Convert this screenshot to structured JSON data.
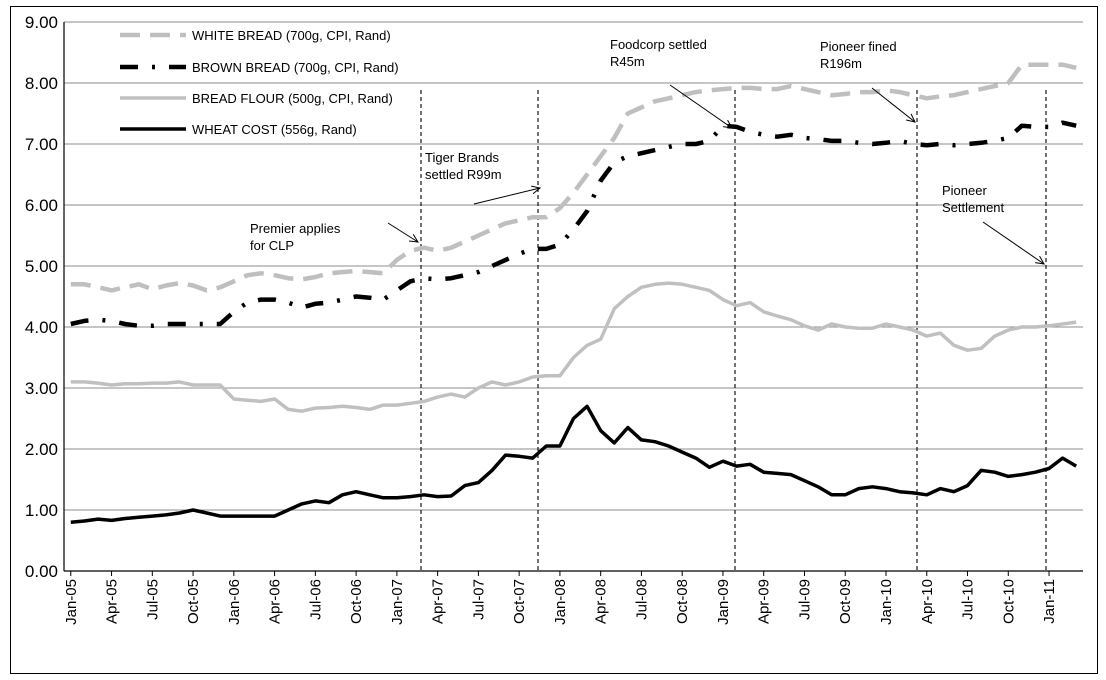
{
  "chart_data": {
    "type": "line",
    "title": "",
    "xlabel": "",
    "ylabel": "",
    "ylim": [
      0,
      9
    ],
    "yticks": [
      "0.00",
      "1.00",
      "2.00",
      "3.00",
      "4.00",
      "5.00",
      "6.00",
      "7.00",
      "8.00",
      "9.00"
    ],
    "x": [
      "2005-01",
      "2005-02",
      "2005-03",
      "2005-04",
      "2005-05",
      "2005-06",
      "2005-07",
      "2005-08",
      "2005-09",
      "2005-10",
      "2005-11",
      "2005-12",
      "2006-01",
      "2006-02",
      "2006-03",
      "2006-04",
      "2006-05",
      "2006-06",
      "2006-07",
      "2006-08",
      "2006-09",
      "2006-10",
      "2006-11",
      "2006-12",
      "2007-01",
      "2007-02",
      "2007-03",
      "2007-04",
      "2007-05",
      "2007-06",
      "2007-07",
      "2007-08",
      "2007-09",
      "2007-10",
      "2007-11",
      "2007-12",
      "2008-01",
      "2008-02",
      "2008-03",
      "2008-04",
      "2008-05",
      "2008-06",
      "2008-07",
      "2008-08",
      "2008-09",
      "2008-10",
      "2008-11",
      "2008-12",
      "2009-01",
      "2009-02",
      "2009-03",
      "2009-04",
      "2009-05",
      "2009-06",
      "2009-07",
      "2009-08",
      "2009-09",
      "2009-10",
      "2009-11",
      "2009-12",
      "2010-01",
      "2010-02",
      "2010-03",
      "2010-04",
      "2010-05",
      "2010-06",
      "2010-07",
      "2010-08",
      "2010-09",
      "2010-10",
      "2010-11",
      "2010-12",
      "2011-01",
      "2011-02",
      "2011-03"
    ],
    "xtick_labels": [
      "Jan-05",
      "Apr-05",
      "Jul-05",
      "Oct-05",
      "Jan-06",
      "Apr-06",
      "Jul-06",
      "Oct-06",
      "Jan-07",
      "Apr-07",
      "Jul-07",
      "Oct-07",
      "Jan-08",
      "Apr-08",
      "Jul-08",
      "Oct-08",
      "Jan-09",
      "Apr-09",
      "Jul-09",
      "Oct-09",
      "Jan-10",
      "Apr-10",
      "Jul-10",
      "Oct-10",
      "Jan-11"
    ],
    "grid": true,
    "legend_position": "top-left",
    "series": [
      {
        "name": "WHITE BREAD (700g, CPI, Rand)",
        "color": "#bfbfbf",
        "style": "dashed",
        "values": [
          4.7,
          4.7,
          4.65,
          4.6,
          4.65,
          4.7,
          4.62,
          4.68,
          4.72,
          4.68,
          4.6,
          4.65,
          4.75,
          4.85,
          4.88,
          4.85,
          4.8,
          4.78,
          4.82,
          4.88,
          4.9,
          4.92,
          4.9,
          4.88,
          5.1,
          5.25,
          5.3,
          5.25,
          5.3,
          5.4,
          5.5,
          5.6,
          5.7,
          5.75,
          5.8,
          5.8,
          5.95,
          6.2,
          6.5,
          6.8,
          7.1,
          7.5,
          7.6,
          7.7,
          7.75,
          7.8,
          7.85,
          7.88,
          7.9,
          7.92,
          7.92,
          7.9,
          7.9,
          7.95,
          7.9,
          7.85,
          7.8,
          7.82,
          7.85,
          7.85,
          7.88,
          7.85,
          7.8,
          7.75,
          7.78,
          7.8,
          7.85,
          7.9,
          7.95,
          8.0,
          8.3,
          8.3,
          8.3,
          8.3,
          8.25
        ]
      },
      {
        "name": "BROWN BREAD (700g, CPI, Rand)",
        "color": "#000000",
        "style": "dash-dot",
        "values": [
          4.05,
          4.1,
          4.12,
          4.1,
          4.05,
          4.02,
          4.02,
          4.05,
          4.05,
          4.05,
          4.05,
          4.05,
          4.25,
          4.4,
          4.45,
          4.45,
          4.4,
          4.32,
          4.38,
          4.4,
          4.45,
          4.5,
          4.48,
          4.45,
          4.6,
          4.75,
          4.8,
          4.78,
          4.8,
          4.85,
          4.9,
          5.0,
          5.1,
          5.2,
          5.28,
          5.28,
          5.35,
          5.6,
          5.9,
          6.4,
          6.7,
          6.8,
          6.85,
          6.9,
          6.95,
          7.0,
          7.0,
          7.05,
          7.3,
          7.28,
          7.2,
          7.15,
          7.12,
          7.15,
          7.1,
          7.08,
          7.05,
          7.05,
          7.02,
          7.0,
          7.02,
          7.05,
          7.0,
          6.98,
          7.0,
          6.98,
          7.0,
          7.02,
          7.05,
          7.1,
          7.3,
          7.28,
          7.28,
          7.35,
          7.3
        ]
      },
      {
        "name": "BREAD FLOUR (500g, CPI, Rand)",
        "color": "#c0c0c0",
        "style": "solid",
        "values": [
          3.1,
          3.1,
          3.08,
          3.05,
          3.07,
          3.07,
          3.08,
          3.08,
          3.1,
          3.05,
          3.05,
          3.05,
          2.82,
          2.8,
          2.78,
          2.82,
          2.65,
          2.62,
          2.67,
          2.68,
          2.7,
          2.68,
          2.65,
          2.72,
          2.72,
          2.75,
          2.78,
          2.85,
          2.9,
          2.85,
          3.0,
          3.1,
          3.05,
          3.1,
          3.18,
          3.2,
          3.2,
          3.5,
          3.7,
          3.8,
          4.3,
          4.5,
          4.65,
          4.7,
          4.72,
          4.7,
          4.65,
          4.6,
          4.45,
          4.35,
          4.4,
          4.25,
          4.18,
          4.12,
          4.02,
          3.95,
          4.05,
          4.0,
          3.98,
          3.98,
          4.05,
          4.0,
          3.95,
          3.85,
          3.9,
          3.7,
          3.62,
          3.65,
          3.85,
          3.95,
          4.0,
          4.0,
          4.02,
          4.05,
          4.08
        ]
      },
      {
        "name": "WHEAT COST (556g, Rand)",
        "color": "#000000",
        "style": "solid",
        "values": [
          0.8,
          0.82,
          0.85,
          0.83,
          0.86,
          0.88,
          0.9,
          0.92,
          0.95,
          1.0,
          0.95,
          0.9,
          0.9,
          0.9,
          0.9,
          0.9,
          1.0,
          1.1,
          1.15,
          1.12,
          1.25,
          1.3,
          1.25,
          1.2,
          1.2,
          1.22,
          1.25,
          1.22,
          1.23,
          1.4,
          1.45,
          1.65,
          1.9,
          1.88,
          1.85,
          2.05,
          2.05,
          2.5,
          2.7,
          2.3,
          2.1,
          2.35,
          2.15,
          2.12,
          2.05,
          1.95,
          1.85,
          1.7,
          1.8,
          1.72,
          1.75,
          1.62,
          1.6,
          1.58,
          1.48,
          1.38,
          1.25,
          1.25,
          1.35,
          1.38,
          1.35,
          1.3,
          1.28,
          1.25,
          1.35,
          1.3,
          1.4,
          1.65,
          1.62,
          1.55,
          1.58,
          1.62,
          1.68,
          1.85,
          1.72
        ]
      }
    ],
    "annotations": [
      {
        "lines": [
          "Premier applies",
          "for CLP"
        ],
        "x_index": 26
      },
      {
        "lines": [
          "Tiger Brands",
          "settled R99m"
        ],
        "x_index": 34
      },
      {
        "lines": [
          "Foodcorp settled",
          "R45m"
        ],
        "x_index": 49
      },
      {
        "lines": [
          "Pioneer fined",
          "R196m"
        ],
        "x_index": 62
      },
      {
        "lines": [
          "Pioneer",
          "Settlement"
        ],
        "x_index": 71
      }
    ]
  }
}
